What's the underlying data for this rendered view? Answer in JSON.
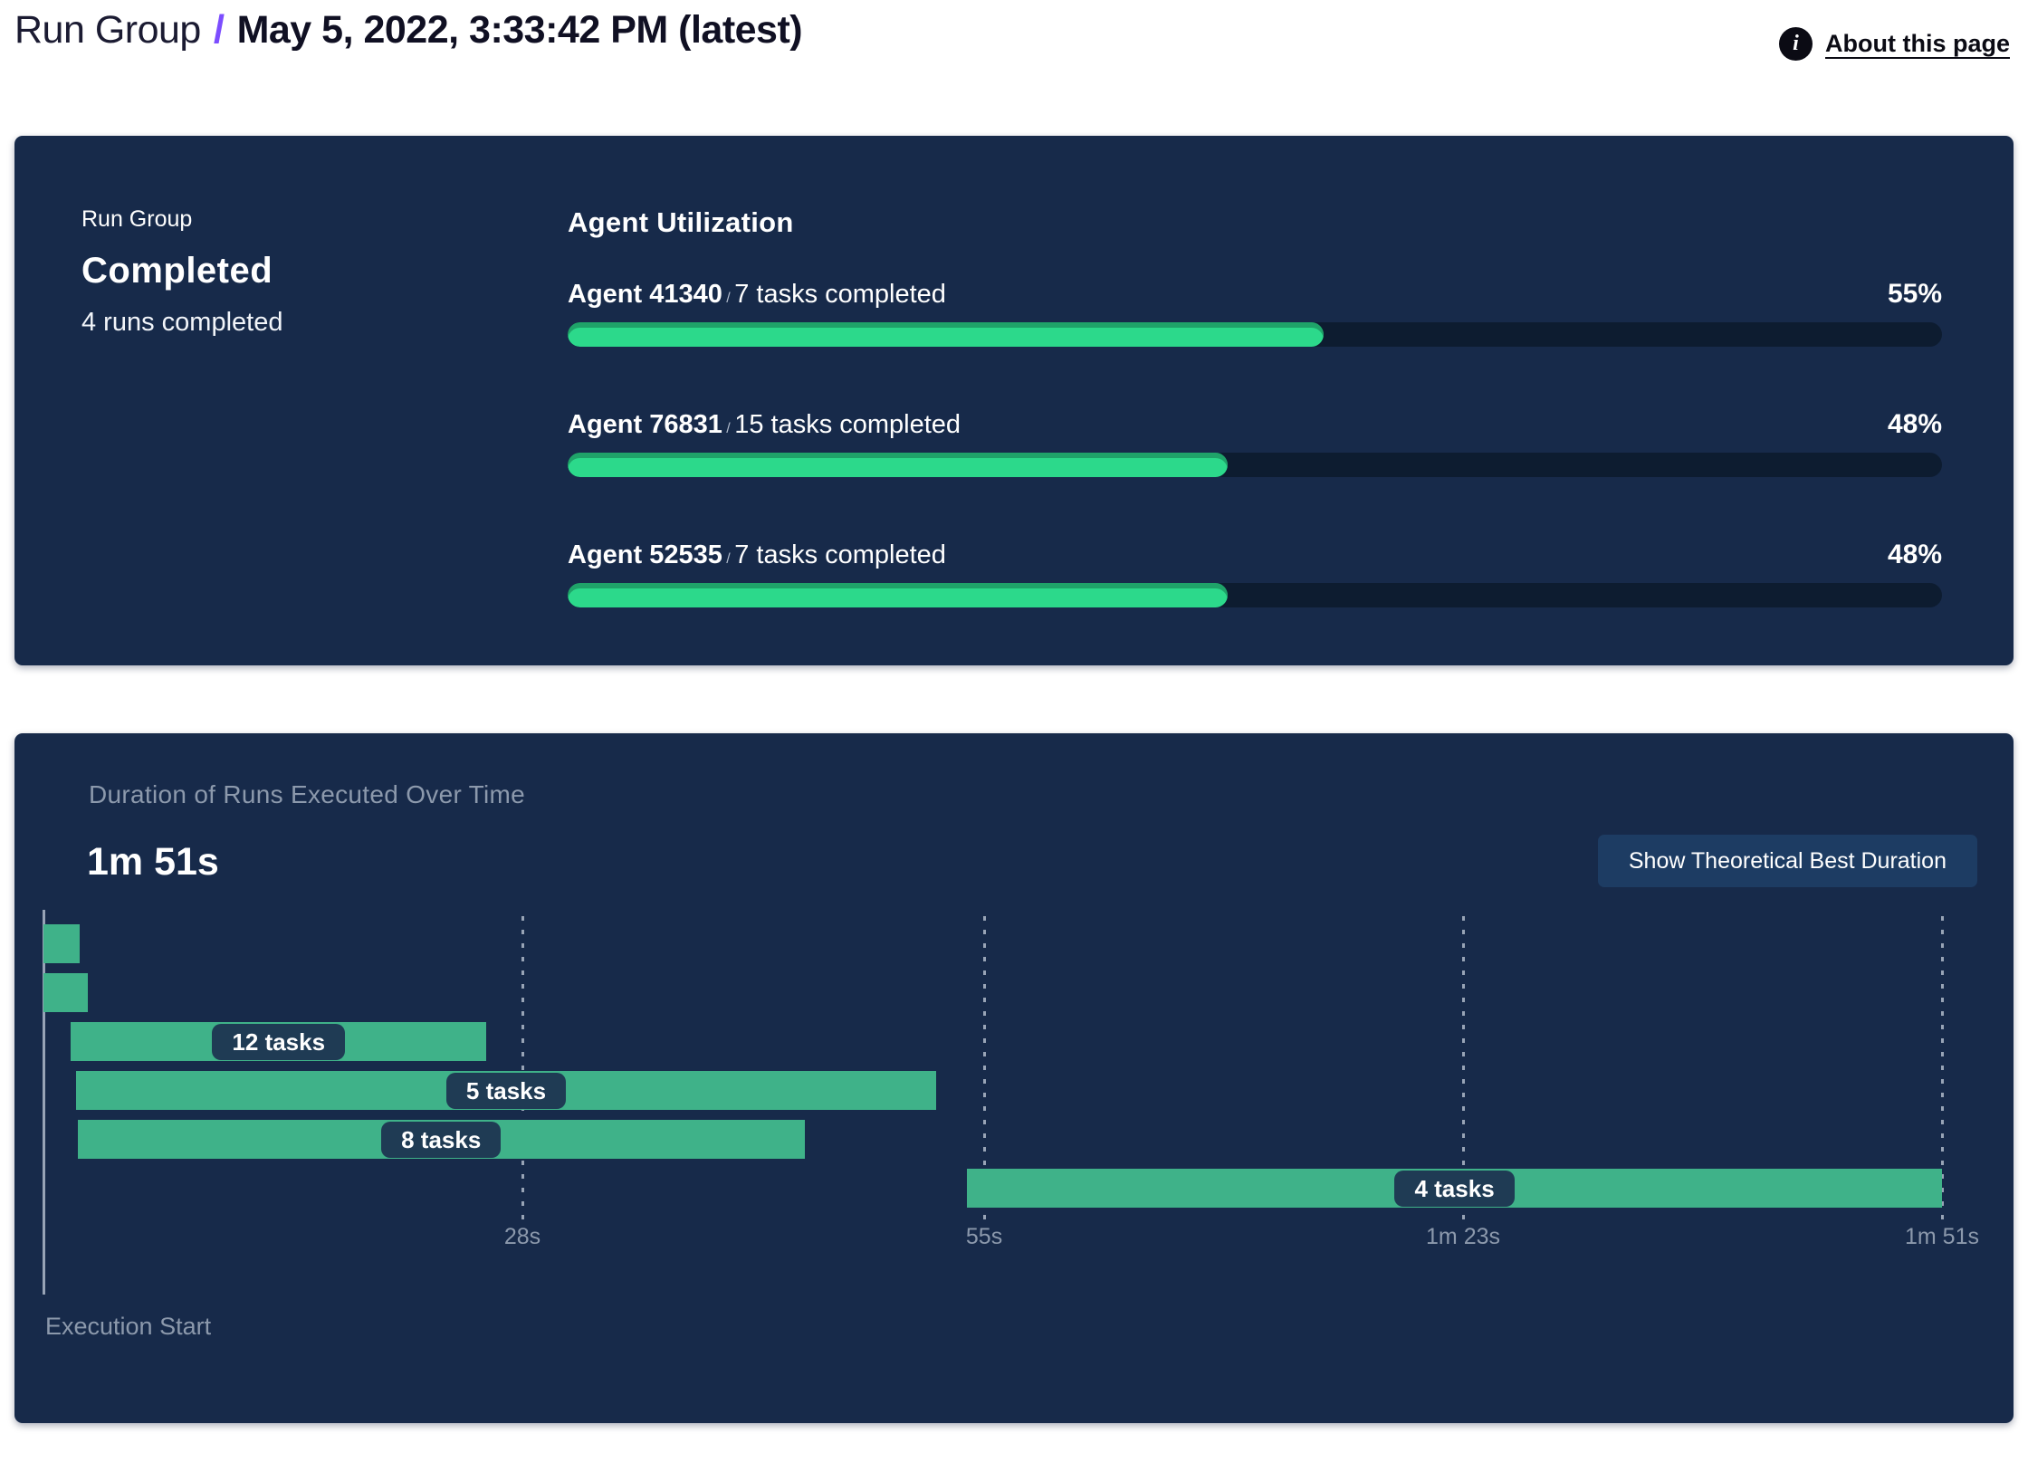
{
  "header": {
    "breadcrumb_root": "Run Group",
    "separator": "/",
    "title": "May 5, 2022, 3:33:42 PM (latest)",
    "info_icon": "i",
    "about_link": "About this page"
  },
  "summary_panel": {
    "eyebrow": "Run Group",
    "status": "Completed",
    "subtext": "4 runs completed",
    "utilization": {
      "heading": "Agent Utilization",
      "separator": "/",
      "agents": [
        {
          "name": "Agent 41340",
          "tasks_label": "7 tasks completed",
          "percent_label": "55%",
          "percent": 55
        },
        {
          "name": "Agent 76831",
          "tasks_label": "15 tasks completed",
          "percent_label": "48%",
          "percent": 48
        },
        {
          "name": "Agent 52535",
          "tasks_label": "7 tasks completed",
          "percent_label": "48%",
          "percent": 48
        }
      ]
    }
  },
  "duration_panel": {
    "title": "Duration of Runs Executed Over Time",
    "total_duration": "1m 51s",
    "button_label": "Show Theoretical Best Duration",
    "axis_caption": "Execution Start"
  },
  "chart_data": {
    "type": "gantt",
    "title": "Duration of Runs Executed Over Time",
    "total_duration_label": "1m 51s",
    "time_axis": {
      "min_s": 0,
      "max_s": 111,
      "ticks": [
        {
          "s": 28,
          "label": "28s"
        },
        {
          "s": 55,
          "label": "55s"
        },
        {
          "s": 83,
          "label": "1m 23s"
        },
        {
          "s": 111,
          "label": "1m 51s"
        }
      ]
    },
    "bars": [
      {
        "row": 0,
        "start_s": 0.0,
        "end_s": 2.1,
        "label": ""
      },
      {
        "row": 1,
        "start_s": 0.0,
        "end_s": 2.6,
        "label": ""
      },
      {
        "row": 2,
        "start_s": 1.6,
        "end_s": 25.9,
        "label": "12 tasks"
      },
      {
        "row": 3,
        "start_s": 1.9,
        "end_s": 52.2,
        "label": "5 tasks"
      },
      {
        "row": 4,
        "start_s": 2.0,
        "end_s": 44.5,
        "label": "8 tasks"
      },
      {
        "row": 5,
        "start_s": 54.0,
        "end_s": 111.0,
        "label": "4 tasks"
      }
    ]
  },
  "colors": {
    "panel_bg": "#172A4A",
    "accent_purple": "#7C4DFF",
    "progress_green": "#2CD98B",
    "progress_track": "#0D1C30",
    "gantt_green": "#3FB289",
    "pill_bg": "#1F3B54",
    "muted_text": "#8C99AC",
    "button_bg": "#1D3C63"
  }
}
